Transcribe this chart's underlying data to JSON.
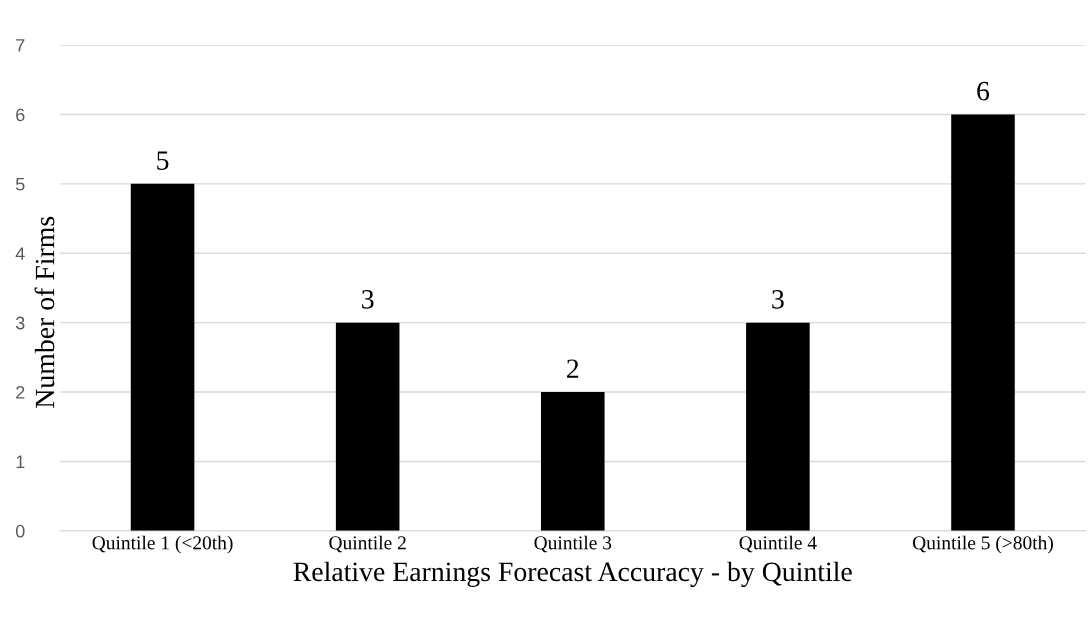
{
  "chart_data": {
    "type": "bar",
    "categories": [
      "Quintile 1 (<20th)",
      "Quintile 2",
      "Quintile 3",
      "Quintile 4",
      "Quintile 5 (>80th)"
    ],
    "values": [
      5,
      3,
      2,
      3,
      6
    ],
    "color": "#000000",
    "xlabel": "Relative Earnings Forecast Accuracy - by Quintile",
    "ylabel": "Number of Firms",
    "ylim": [
      0,
      7
    ],
    "yticks": [
      0,
      1,
      2,
      3,
      4,
      5,
      6,
      7
    ],
    "grid": "y",
    "data_labels": true
  }
}
